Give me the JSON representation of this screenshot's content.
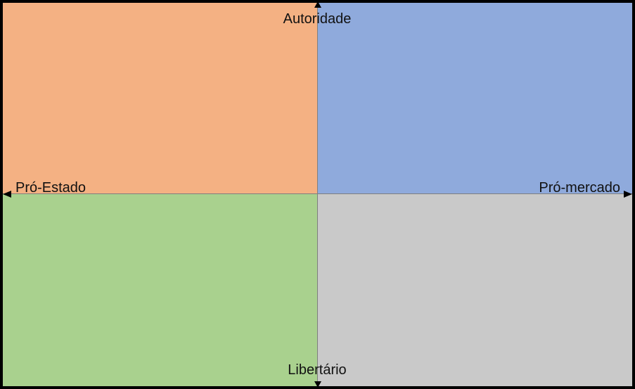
{
  "axes": {
    "top_label": "Autoridade",
    "bottom_label": "Libertário",
    "left_label": "Pró-Estado",
    "right_label": "Pró-mercado"
  },
  "quadrants": {
    "top_left_color": "#f4b183",
    "top_right_color": "#8faadc",
    "bottom_left_color": "#a9d18e",
    "bottom_right_color": "#c9c9c9"
  }
}
